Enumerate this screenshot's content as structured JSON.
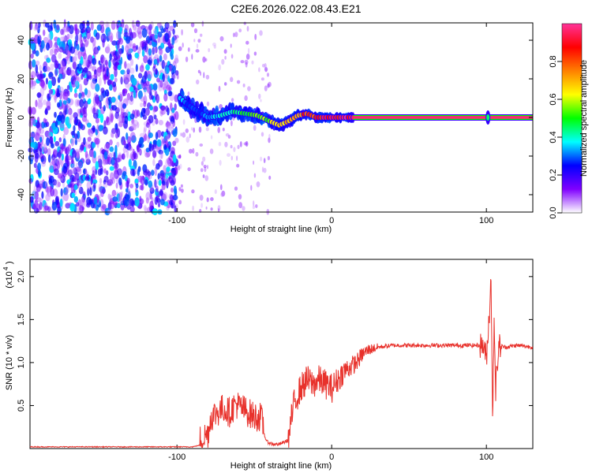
{
  "title": "C2E6.2026.022.08.43.E21",
  "chart_data": [
    {
      "type": "heatmap",
      "xlabel": "Height of straight line (km)",
      "ylabel": "Frequency (Hz)",
      "xlim": [
        -195,
        130
      ],
      "ylim": [
        -49,
        49
      ],
      "xticks": [
        -100,
        0,
        100
      ],
      "yticks": [
        -40,
        -20,
        0,
        20,
        40
      ],
      "colorbar": {
        "label": "Normalized spectral amplitude",
        "range": [
          0,
          1
        ],
        "ticks": [
          "0.0",
          "0.2",
          "0.4",
          "0.6",
          "0.8"
        ],
        "tick_values": [
          0,
          0.2,
          0.4,
          0.6,
          0.8
        ],
        "colors": [
          "#ffffff",
          "#8000ff",
          "#0000ff",
          "#00ffff",
          "#00ff00",
          "#ffff00",
          "#ff8000",
          "#ff0000",
          "#ff3399"
        ]
      },
      "noise_region_x": [
        -195,
        -100
      ],
      "ridge": {
        "x": [
          -98,
          -92,
          -86,
          -80,
          -72,
          -64,
          -56,
          -48,
          -40,
          -34,
          -28,
          -22,
          -16,
          -10,
          -4,
          2,
          8,
          14,
          130
        ],
        "frequency": [
          10,
          6,
          3,
          0,
          1,
          3,
          2,
          1,
          -2,
          -4,
          -2,
          1,
          2,
          0,
          0,
          0,
          0,
          0,
          0
        ],
        "amplitude": [
          0.35,
          0.3,
          0.3,
          0.35,
          0.4,
          0.45,
          0.5,
          0.55,
          0.6,
          0.7,
          0.75,
          0.8,
          0.85,
          0.9,
          0.92,
          0.95,
          0.95,
          0.97,
          0.97
        ]
      },
      "spike_x": 101
    },
    {
      "type": "line",
      "xlabel": "Height of straight line (km)",
      "ylabel": "SNR (10 * v/v)",
      "yscale_label": "(x10",
      "yscale_exp": "4",
      "xlim": [
        -195,
        130
      ],
      "ylim": [
        0,
        2.2
      ],
      "xticks": [
        -100,
        0,
        100
      ],
      "yticks": [
        0.5,
        1.0,
        1.5,
        2.0
      ],
      "ytick_labels": [
        "0.5",
        "1.0",
        "1.5",
        "2.0"
      ],
      "color": "#e8312b",
      "series": [
        {
          "x": [
            -195,
            -90,
            -85,
            -80,
            -78,
            -74,
            -70,
            -66,
            -62,
            -58,
            -54,
            -50,
            -46,
            -42,
            -38,
            -34,
            -30,
            -28,
            -26,
            -24,
            -20,
            -16,
            -12,
            -8,
            -4,
            0,
            4,
            8,
            12,
            16,
            20,
            24,
            30,
            40,
            60,
            80,
            98,
            100,
            102,
            103,
            104,
            105,
            106,
            108,
            112,
            120,
            130
          ],
          "y": [
            0.02,
            0.02,
            0.04,
            0.1,
            0.3,
            0.35,
            0.4,
            0.35,
            0.45,
            0.4,
            0.35,
            0.3,
            0.3,
            0.08,
            0.05,
            0.05,
            0.08,
            0.1,
            0.35,
            0.55,
            0.7,
            0.8,
            0.75,
            0.8,
            0.75,
            0.7,
            0.8,
            0.9,
            0.95,
            1.0,
            1.1,
            1.15,
            1.18,
            1.2,
            1.2,
            1.2,
            1.2,
            1.05,
            1.6,
            2.05,
            0.3,
            1.55,
            0.7,
            1.2,
            1.18,
            1.2,
            1.18
          ]
        }
      ]
    }
  ]
}
